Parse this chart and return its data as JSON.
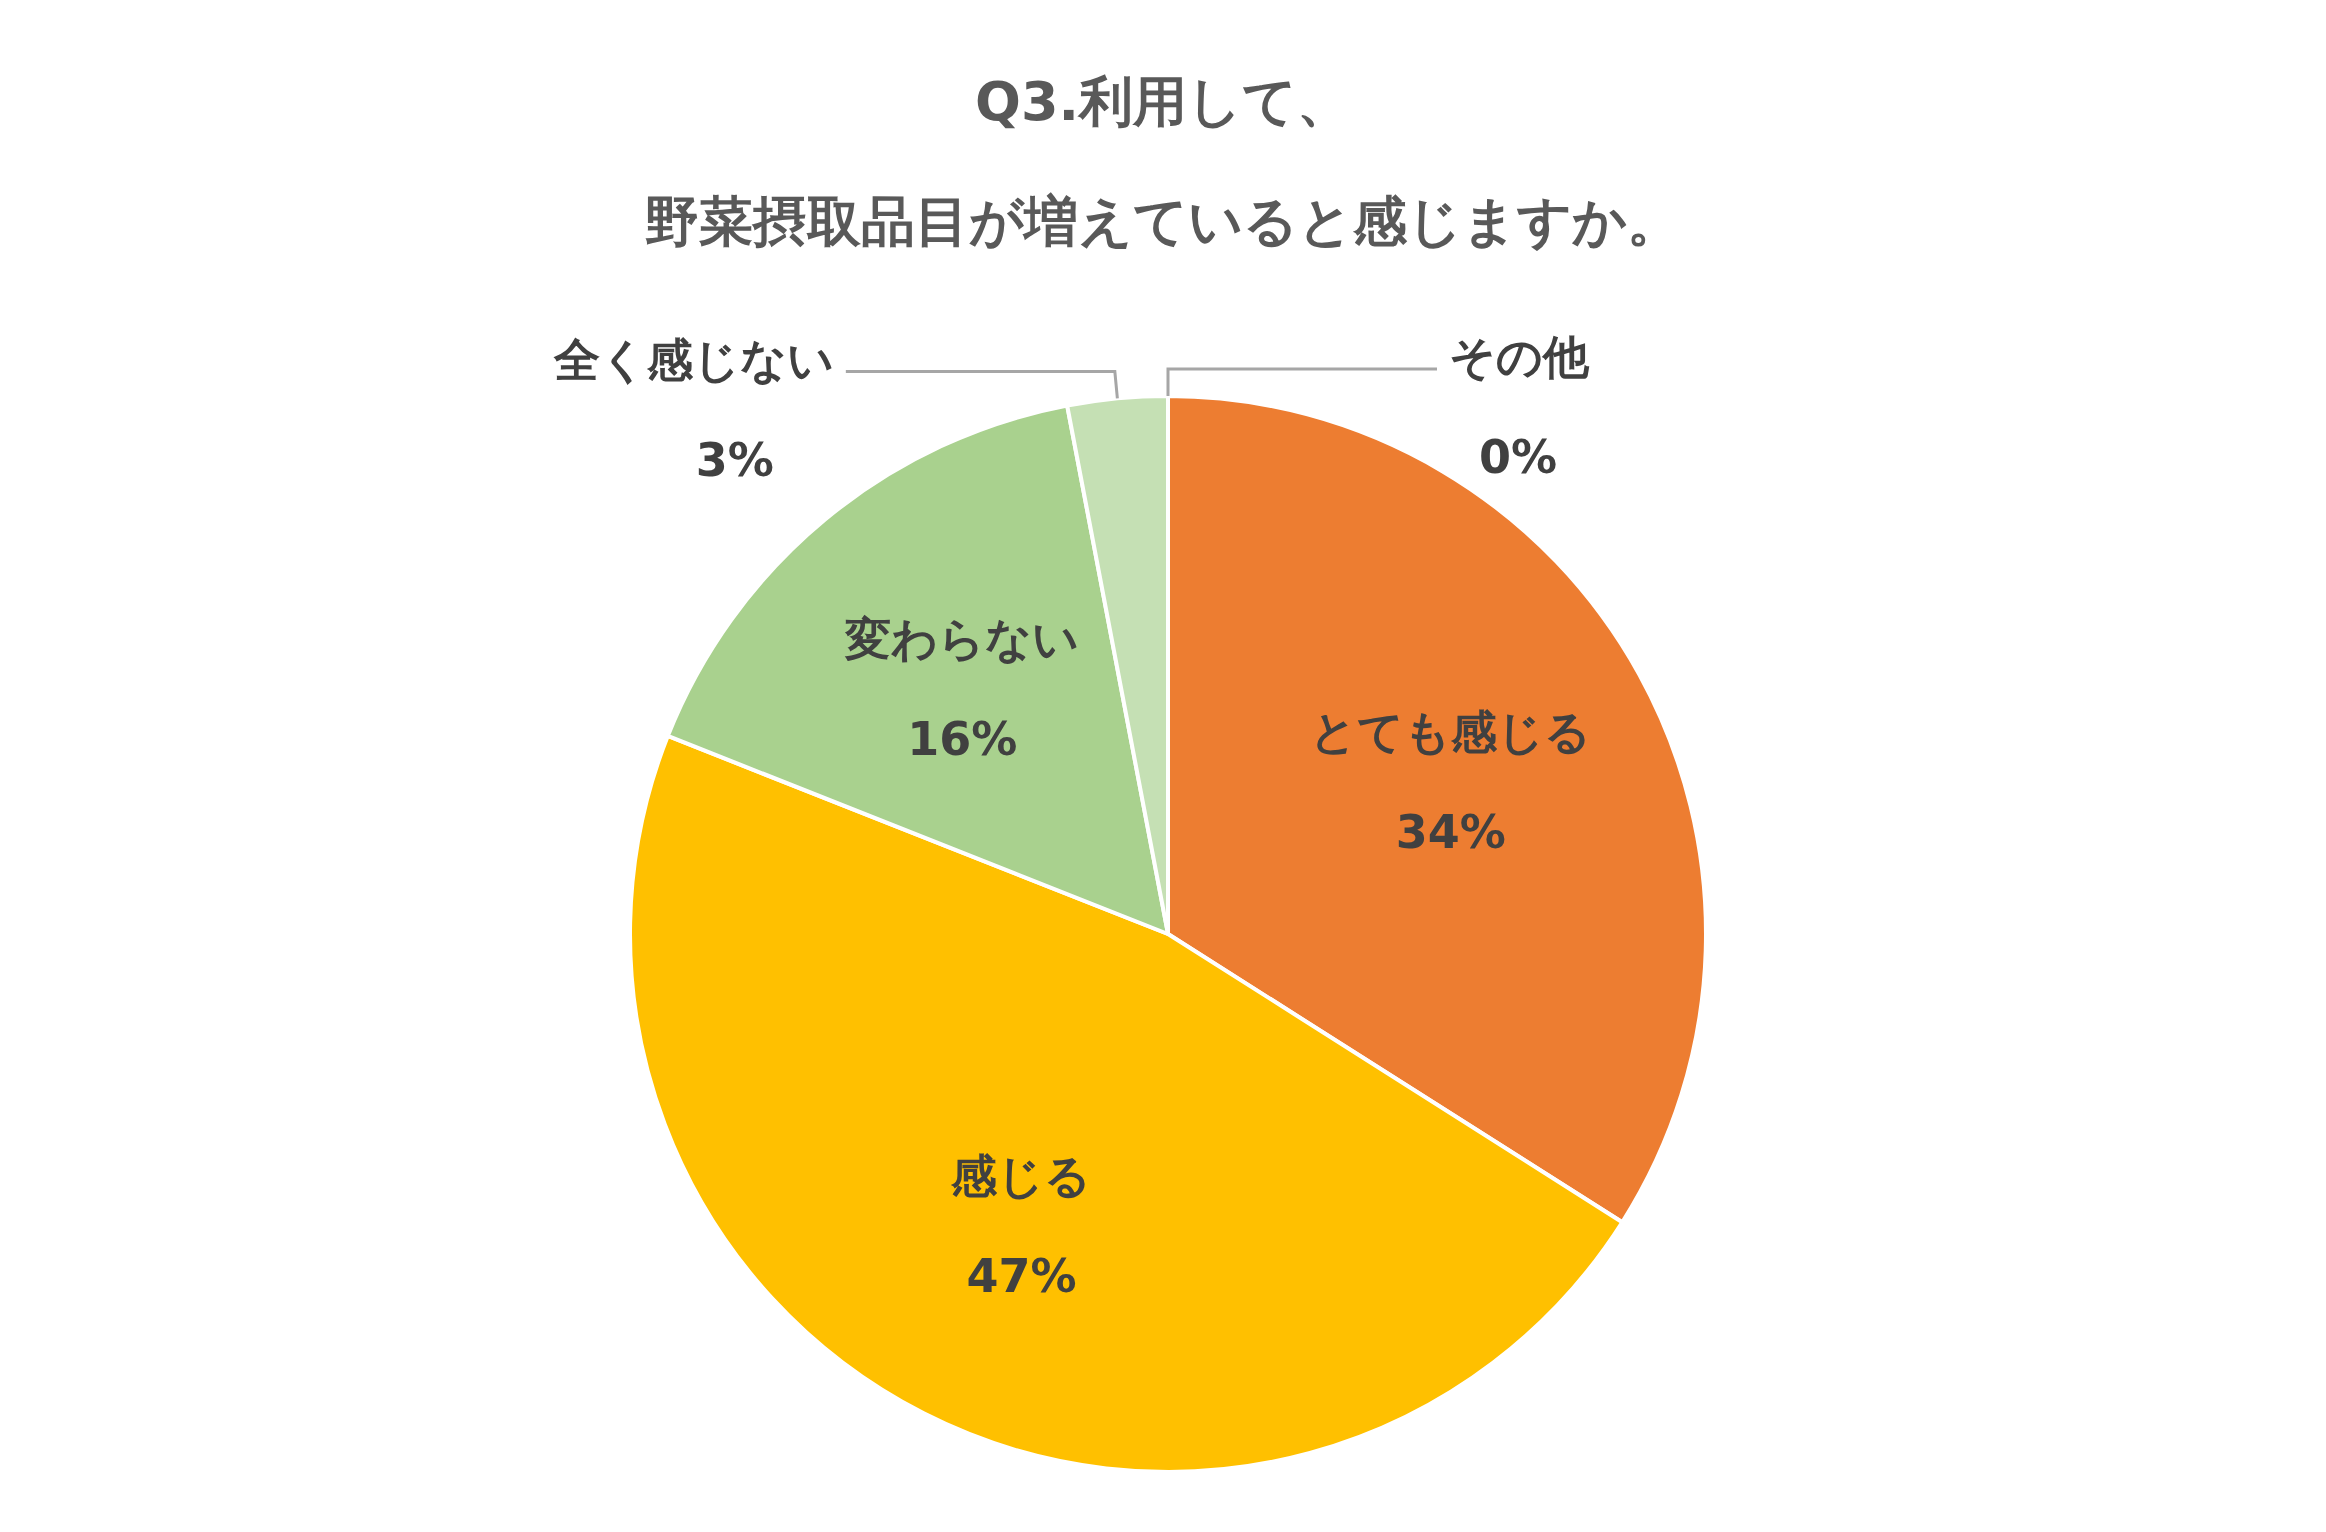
{
  "chart_data": {
    "type": "pie",
    "title": "Q3.利用して、",
    "subtitle": "野菜摂取品目が増えていると感じますか。",
    "categories": [
      "とても感じる",
      "感じる",
      "変わらない",
      "全く感じない",
      "その他"
    ],
    "values": [
      34,
      47,
      16,
      3,
      0
    ],
    "value_labels": [
      "34%",
      "47%",
      "16%",
      "3%",
      "0%"
    ],
    "colors": [
      "#ed7d31",
      "#ffc000",
      "#a9d18e",
      "#c5e0b4",
      null
    ]
  }
}
